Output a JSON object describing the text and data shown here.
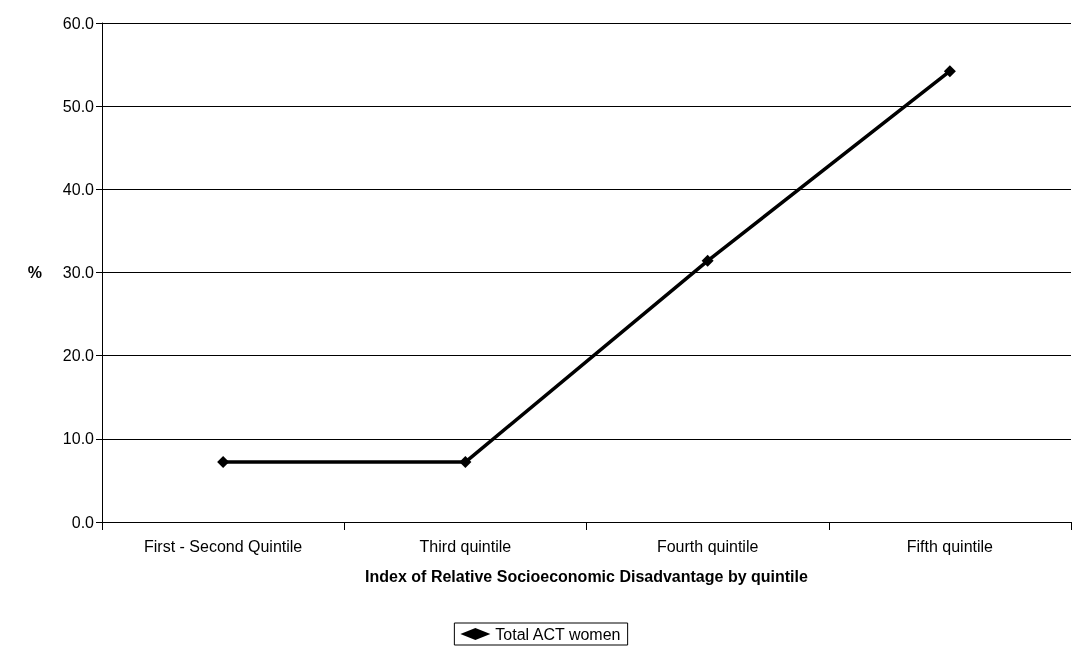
{
  "chart_data": {
    "type": "line",
    "xlabel": "Index of Relative Socioeconomic Disadvantage by quintile",
    "ylabel": "%",
    "categories": [
      "First - Second Quintile",
      "Third quintile",
      "Fourth quintile",
      "Fifth quintile"
    ],
    "series": [
      {
        "name": "Total ACT women",
        "color": "#000000",
        "values": [
          7.2,
          7.2,
          31.4,
          54.2
        ]
      }
    ],
    "ylim": [
      0,
      60
    ],
    "yticks": [
      {
        "value": 0,
        "label": "0.0"
      },
      {
        "value": 10,
        "label": "10.0"
      },
      {
        "value": 20,
        "label": "20.0"
      },
      {
        "value": 30,
        "label": "30.0"
      },
      {
        "value": 40,
        "label": "40.0"
      },
      {
        "value": 50,
        "label": "50.0"
      },
      {
        "value": 60,
        "label": "60.0"
      }
    ],
    "grid": "y",
    "legend": "bottom",
    "marker": "diamond",
    "line_style": "solid"
  }
}
